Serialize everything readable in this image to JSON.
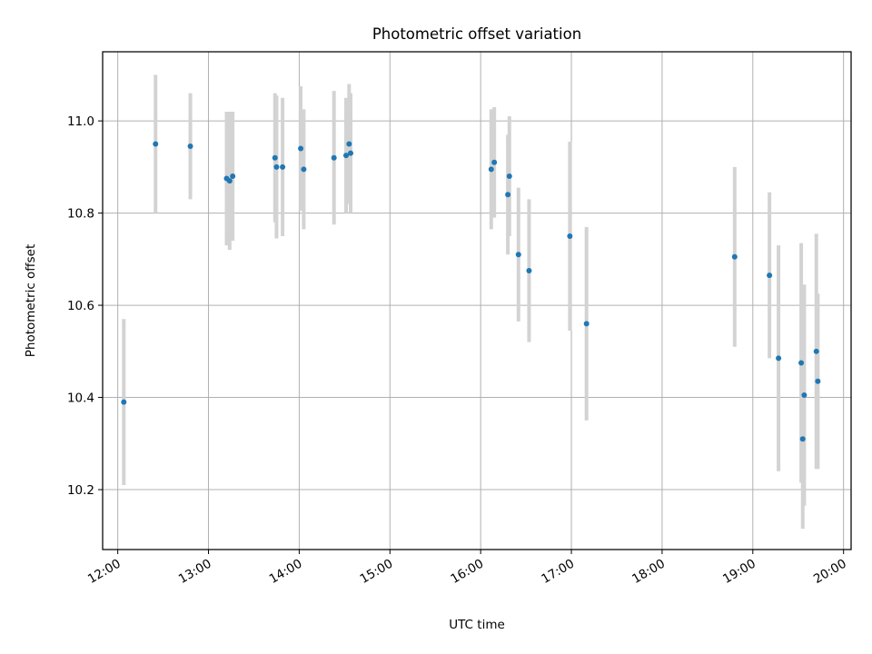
{
  "chart_data": {
    "type": "scatter",
    "title": "Photometric offset variation",
    "xlabel": "UTC time",
    "ylabel": "Photometric offset",
    "x_axis": "time",
    "xlim": [
      "11:50",
      "20:05"
    ],
    "ylim": [
      10.07,
      11.15
    ],
    "xticks": [
      "12:00",
      "13:00",
      "14:00",
      "15:00",
      "16:00",
      "17:00",
      "18:00",
      "19:00",
      "20:00"
    ],
    "yticks": [
      10.2,
      10.4,
      10.6,
      10.8,
      11.0
    ],
    "grid": true,
    "legend": "none",
    "colors": {
      "point": "#1f77b4",
      "errorbar": "#d3d3d3",
      "grid": "#b0b0b0"
    },
    "series": [
      {
        "points": [
          {
            "x": "12:04",
            "y": 10.39,
            "err": 0.18
          },
          {
            "x": "12:25",
            "y": 10.95,
            "err": 0.15
          },
          {
            "x": "12:48",
            "y": 10.945,
            "err": 0.115
          },
          {
            "x": "13:12",
            "y": 10.875,
            "err": 0.145
          },
          {
            "x": "13:14",
            "y": 10.87,
            "err": 0.15
          },
          {
            "x": "13:16",
            "y": 10.88,
            "err": 0.14
          },
          {
            "x": "13:44",
            "y": 10.92,
            "err": 0.14
          },
          {
            "x": "13:45",
            "y": 10.9,
            "err": 0.155
          },
          {
            "x": "13:49",
            "y": 10.9,
            "err": 0.15
          },
          {
            "x": "14:01",
            "y": 10.94,
            "err": 0.135
          },
          {
            "x": "14:03",
            "y": 10.895,
            "err": 0.13
          },
          {
            "x": "14:23",
            "y": 10.92,
            "err": 0.145
          },
          {
            "x": "14:31",
            "y": 10.925,
            "err": 0.125
          },
          {
            "x": "14:33",
            "y": 10.95,
            "err": 0.13
          },
          {
            "x": "14:34",
            "y": 10.93,
            "err": 0.13
          },
          {
            "x": "16:07",
            "y": 10.895,
            "err": 0.13
          },
          {
            "x": "16:09",
            "y": 10.91,
            "err": 0.12
          },
          {
            "x": "16:18",
            "y": 10.84,
            "err": 0.13
          },
          {
            "x": "16:19",
            "y": 10.88,
            "err": 0.13
          },
          {
            "x": "16:25",
            "y": 10.71,
            "err": 0.145
          },
          {
            "x": "16:32",
            "y": 10.675,
            "err": 0.155
          },
          {
            "x": "16:59",
            "y": 10.75,
            "err": 0.205
          },
          {
            "x": "17:10",
            "y": 10.56,
            "err": 0.21
          },
          {
            "x": "18:48",
            "y": 10.705,
            "err": 0.195
          },
          {
            "x": "19:11",
            "y": 10.665,
            "err": 0.18
          },
          {
            "x": "19:17",
            "y": 10.485,
            "err": 0.245
          },
          {
            "x": "19:32",
            "y": 10.475,
            "err": 0.26
          },
          {
            "x": "19:33",
            "y": 10.31,
            "err": 0.195
          },
          {
            "x": "19:34",
            "y": 10.405,
            "err": 0.24
          },
          {
            "x": "19:42",
            "y": 10.5,
            "err": 0.255
          },
          {
            "x": "19:43",
            "y": 10.435,
            "err": 0.19
          }
        ]
      }
    ]
  }
}
